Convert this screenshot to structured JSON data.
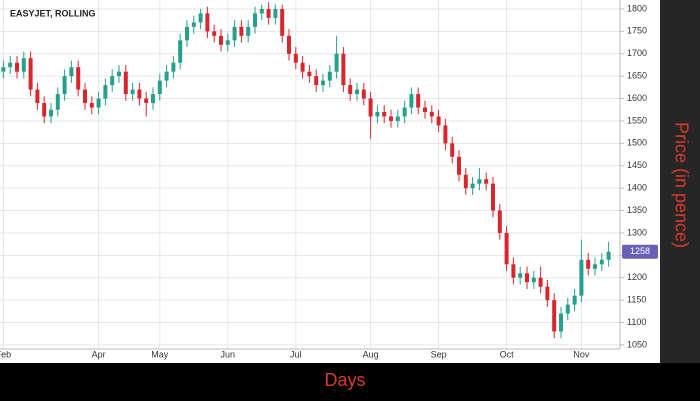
{
  "chart_data": {
    "type": "candlestick",
    "title": "EASYJET, ROLLING",
    "x_label": "Days",
    "y_label": "Price (in pence)",
    "categories": [
      "Feb",
      null,
      null,
      null,
      null,
      null,
      null,
      null,
      null,
      null,
      null,
      null,
      null,
      null,
      "Apr",
      null,
      null,
      null,
      null,
      null,
      null,
      null,
      null,
      "May",
      null,
      null,
      null,
      null,
      null,
      null,
      null,
      null,
      null,
      "Jun",
      null,
      null,
      null,
      null,
      null,
      null,
      null,
      null,
      null,
      "Jul",
      null,
      null,
      null,
      null,
      null,
      null,
      null,
      null,
      null,
      null,
      "Aug",
      null,
      null,
      null,
      null,
      null,
      null,
      null,
      null,
      null,
      "Sep",
      null,
      null,
      null,
      null,
      null,
      null,
      null,
      null,
      null,
      "Oct",
      null,
      null,
      null,
      null,
      null,
      null,
      null,
      null,
      null,
      null,
      "Nov",
      null,
      null,
      null,
      null
    ],
    "open": [
      1660,
      1670,
      1680,
      1660,
      1690,
      1620,
      1590,
      1560,
      1575,
      1610,
      1650,
      1670,
      1620,
      1590,
      1580,
      1600,
      1630,
      1650,
      1660,
      1610,
      1620,
      1600,
      1590,
      1610,
      1640,
      1660,
      1680,
      1730,
      1760,
      1770,
      1790,
      1750,
      1740,
      1720,
      1730,
      1760,
      1740,
      1760,
      1790,
      1800,
      1780,
      1800,
      1740,
      1700,
      1680,
      1660,
      1650,
      1630,
      1640,
      1660,
      1700,
      1630,
      1610,
      1620,
      1600,
      1560,
      1570,
      1560,
      1550,
      1560,
      1580,
      1610,
      1580,
      1570,
      1560,
      1540,
      1500,
      1470,
      1430,
      1400,
      1410,
      1420,
      1410,
      1350,
      1300,
      1230,
      1200,
      1210,
      1190,
      1200,
      1180,
      1150,
      1080,
      1120,
      1140,
      1160,
      1240,
      1220,
      1230,
      1240
    ],
    "high": [
      1685,
      1695,
      1695,
      1705,
      1705,
      1635,
      1605,
      1590,
      1625,
      1665,
      1685,
      1685,
      1635,
      1605,
      1615,
      1645,
      1665,
      1675,
      1675,
      1635,
      1635,
      1615,
      1625,
      1655,
      1675,
      1695,
      1745,
      1775,
      1785,
      1800,
      1805,
      1765,
      1755,
      1745,
      1775,
      1775,
      1775,
      1805,
      1810,
      1815,
      1810,
      1810,
      1755,
      1715,
      1695,
      1675,
      1665,
      1655,
      1675,
      1740,
      1715,
      1645,
      1635,
      1635,
      1615,
      1585,
      1585,
      1575,
      1575,
      1595,
      1625,
      1625,
      1595,
      1585,
      1575,
      1555,
      1515,
      1485,
      1445,
      1425,
      1445,
      1435,
      1425,
      1365,
      1315,
      1245,
      1225,
      1225,
      1215,
      1225,
      1195,
      1165,
      1135,
      1155,
      1175,
      1285,
      1255,
      1245,
      1255,
      1280
    ],
    "low": [
      1645,
      1655,
      1645,
      1645,
      1605,
      1575,
      1545,
      1545,
      1560,
      1595,
      1635,
      1605,
      1575,
      1565,
      1565,
      1585,
      1615,
      1635,
      1595,
      1595,
      1585,
      1560,
      1575,
      1595,
      1625,
      1645,
      1665,
      1715,
      1745,
      1755,
      1735,
      1725,
      1705,
      1705,
      1715,
      1725,
      1725,
      1745,
      1775,
      1765,
      1765,
      1725,
      1685,
      1665,
      1645,
      1635,
      1615,
      1615,
      1625,
      1645,
      1615,
      1595,
      1595,
      1585,
      1510,
      1545,
      1545,
      1535,
      1535,
      1545,
      1565,
      1565,
      1555,
      1545,
      1525,
      1485,
      1455,
      1415,
      1385,
      1385,
      1395,
      1395,
      1335,
      1285,
      1215,
      1185,
      1185,
      1175,
      1175,
      1165,
      1135,
      1065,
      1065,
      1105,
      1125,
      1145,
      1205,
      1205,
      1215,
      1225
    ],
    "close": [
      1670,
      1680,
      1660,
      1690,
      1620,
      1590,
      1560,
      1575,
      1610,
      1650,
      1670,
      1620,
      1590,
      1580,
      1600,
      1630,
      1650,
      1660,
      1610,
      1620,
      1600,
      1590,
      1610,
      1640,
      1660,
      1680,
      1730,
      1760,
      1770,
      1790,
      1750,
      1740,
      1720,
      1730,
      1760,
      1740,
      1760,
      1790,
      1800,
      1780,
      1800,
      1740,
      1700,
      1680,
      1660,
      1650,
      1630,
      1640,
      1660,
      1700,
      1630,
      1610,
      1620,
      1600,
      1560,
      1570,
      1560,
      1550,
      1560,
      1580,
      1610,
      1580,
      1570,
      1560,
      1540,
      1500,
      1470,
      1430,
      1400,
      1410,
      1420,
      1410,
      1350,
      1300,
      1230,
      1200,
      1210,
      1190,
      1200,
      1180,
      1150,
      1080,
      1120,
      1140,
      1160,
      1240,
      1220,
      1230,
      1240,
      1258
    ],
    "up_color": "#26a08c",
    "down_color": "#d8262e",
    "ylim": [
      1040,
      1820
    ],
    "yticks": [
      1050,
      1100,
      1150,
      1200,
      1250,
      1300,
      1350,
      1400,
      1450,
      1500,
      1550,
      1600,
      1650,
      1700,
      1750,
      1800
    ],
    "grid": true
  }
}
